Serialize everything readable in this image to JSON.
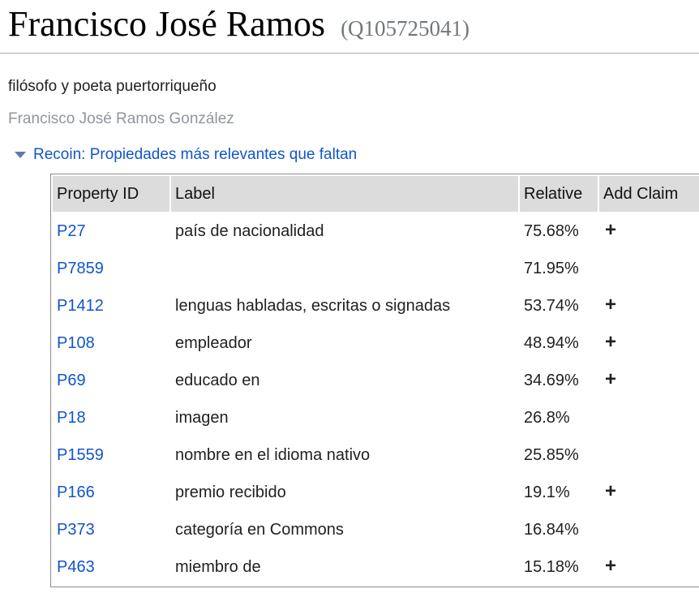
{
  "page": {
    "title": "Francisco José Ramos",
    "entity_id": "(Q105725041)",
    "description": "filósofo y poeta puertorriqueño",
    "alias": "Francisco José Ramos González"
  },
  "recoin": {
    "toggle_label": "Recoin: Propiedades más relevantes que faltan",
    "arrow_icon": "collapse-arrow-down"
  },
  "table": {
    "headers": [
      "Property ID",
      "Label",
      "Relative",
      "Add Claim"
    ],
    "rows": [
      {
        "property_id": "P27",
        "label": "país de nacionalidad",
        "relative": "75.68%",
        "add_claim": "+"
      },
      {
        "property_id": "P7859",
        "label": "",
        "relative": "71.95%",
        "add_claim": ""
      },
      {
        "property_id": "P1412",
        "label": "lenguas habladas, escritas o signadas",
        "relative": "53.74%",
        "add_claim": "+"
      },
      {
        "property_id": "P108",
        "label": "empleador",
        "relative": "48.94%",
        "add_claim": "+"
      },
      {
        "property_id": "P69",
        "label": "educado en",
        "relative": "34.69%",
        "add_claim": "+"
      },
      {
        "property_id": "P18",
        "label": "imagen",
        "relative": "26.8%",
        "add_claim": ""
      },
      {
        "property_id": "P1559",
        "label": "nombre en el idioma nativo",
        "relative": "25.85%",
        "add_claim": ""
      },
      {
        "property_id": "P166",
        "label": "premio recibido",
        "relative": "19.1%",
        "add_claim": "+"
      },
      {
        "property_id": "P373",
        "label": "categoría en Commons",
        "relative": "16.84%",
        "add_claim": ""
      },
      {
        "property_id": "P463",
        "label": "miembro de",
        "relative": "15.18%",
        "add_claim": "+"
      }
    ]
  },
  "colors": {
    "link_blue": "#1155cc",
    "id_gray": "#72777d",
    "alias_gray": "#8f969e",
    "header_bg": "#dcdcdc",
    "table_border": "#8c8c8c",
    "rule_gray": "#a7adb5",
    "arrow_blue": "#5a7ca8",
    "text": "#202122"
  }
}
